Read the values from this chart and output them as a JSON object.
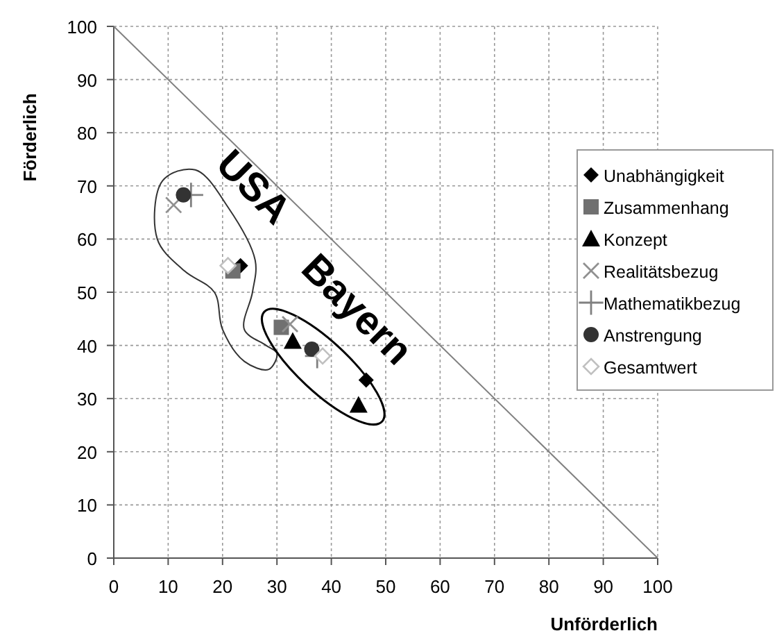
{
  "chart_data": {
    "type": "scatter",
    "xlabel": "Unförderlich",
    "ylabel": "Förderlich",
    "xlim": [
      0,
      100
    ],
    "ylim": [
      0,
      100
    ],
    "xticks": [
      0,
      10,
      20,
      30,
      40,
      50,
      60,
      70,
      80,
      90,
      100
    ],
    "yticks": [
      0,
      10,
      20,
      30,
      40,
      50,
      60,
      70,
      80,
      90,
      100
    ],
    "grid": true,
    "legend": "right",
    "annotations": [
      "USA",
      "Bayern"
    ],
    "series": [
      {
        "name": "Unabhängigkeit",
        "color": "#000000",
        "marker": "diamond",
        "x": [
          23.3,
          46.4
        ],
        "values": [
          55,
          33.5
        ]
      },
      {
        "name": "Zusammenhang",
        "color": "#707070",
        "marker": "square",
        "x": [
          21.9,
          30.8
        ],
        "values": [
          54,
          43.4
        ]
      },
      {
        "name": "Konzept",
        "color": "#000000",
        "marker": "triangle",
        "x": [
          32.9,
          45
        ],
        "values": [
          40.8,
          28.8
        ]
      },
      {
        "name": "Realitätsbezug",
        "color": "#909090",
        "marker": "cross",
        "x": [
          11,
          32.4
        ],
        "values": [
          66.4,
          44
        ]
      },
      {
        "name": "Mathematikbezug",
        "color": "#808080",
        "marker": "plus",
        "x": [
          14.2,
          37.4
        ],
        "values": [
          68.3,
          38
        ]
      },
      {
        "name": "Anstrengung",
        "color": "#333333",
        "marker": "circle",
        "x": [
          12.8,
          36.4
        ],
        "values": [
          68.3,
          39.3
        ]
      },
      {
        "name": "Gesamtwert",
        "color": "#c0c0c0",
        "marker": "diamond-open",
        "x": [
          21,
          38.4
        ],
        "values": [
          55,
          38
        ]
      },
      {
        "type": "line",
        "color": "#808080",
        "x": [
          0,
          100
        ],
        "values": [
          100,
          0
        ]
      }
    ]
  }
}
